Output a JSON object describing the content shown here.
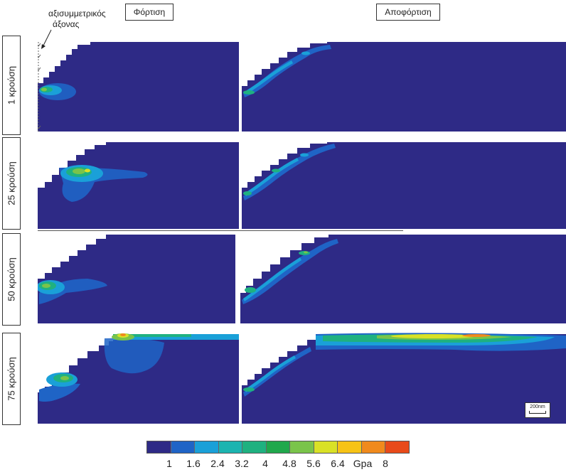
{
  "header": {
    "loading_label": "Φόρτιση",
    "unloading_label": "Αποφόρτιση",
    "axis_annotation_line1": "αξισυμμετρικός",
    "axis_annotation_line2": "άξονας"
  },
  "rows": [
    {
      "label": "1 κρούση"
    },
    {
      "label": "25 κρούση"
    },
    {
      "label": "50 κρούση"
    },
    {
      "label": "75 κρούση"
    }
  ],
  "scale_bar": {
    "label": "200nm"
  },
  "legend": {
    "colors": [
      "#2e2a86",
      "#1f64c6",
      "#1aa0d8",
      "#1cb4b0",
      "#1fb180",
      "#20a84c",
      "#7ac44a",
      "#d9e126",
      "#f7c315",
      "#f08a1d",
      "#e84a1a"
    ],
    "tick_labels": [
      "1",
      "1.6",
      "2.4",
      "3.2",
      "4",
      "4.8",
      "5.6",
      "6.4",
      "Gpa",
      "8"
    ]
  },
  "colors": {
    "background_field": "#2e2a86",
    "low": "#1f64c6",
    "mid": "#1aa0d8",
    "mid_high": "#1fb180",
    "high": "#7ac44a",
    "peak": "#f08a1d"
  }
}
